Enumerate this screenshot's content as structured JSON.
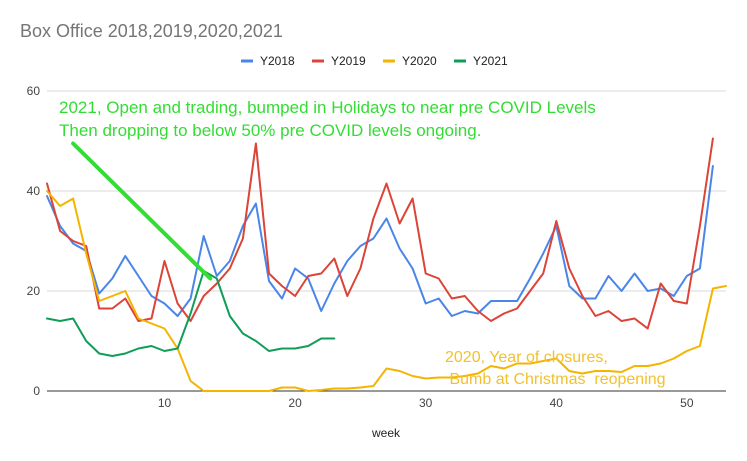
{
  "chart_data": {
    "type": "line",
    "title": "Box Office 2018,2019,2020,2021",
    "xlabel": "week",
    "ylabel": "",
    "xlim": [
      1,
      53
    ],
    "ylim": [
      0,
      60
    ],
    "x_ticks": [
      10,
      20,
      30,
      40,
      50
    ],
    "y_ticks": [
      0,
      20,
      40,
      60
    ],
    "grid": "horizontal",
    "legend_position": "top",
    "series": [
      {
        "name": "Y2018",
        "color": "#4a86e8",
        "x": [
          1,
          2,
          3,
          4,
          5,
          6,
          7,
          8,
          9,
          10,
          11,
          12,
          13,
          14,
          15,
          16,
          17,
          18,
          19,
          20,
          21,
          22,
          23,
          24,
          25,
          26,
          27,
          28,
          29,
          30,
          31,
          32,
          33,
          34,
          35,
          36,
          37,
          38,
          39,
          40,
          41,
          42,
          43,
          44,
          45,
          46,
          47,
          48,
          49,
          50,
          51,
          52
        ],
        "values": [
          39.0,
          33.0,
          29.5,
          28.0,
          19.5,
          22.5,
          27.0,
          23.0,
          19.0,
          17.5,
          15.0,
          18.5,
          31.0,
          23.0,
          26.0,
          33.0,
          37.5,
          22.0,
          18.5,
          24.5,
          22.5,
          16.0,
          21.5,
          26.0,
          29.0,
          30.5,
          34.5,
          28.5,
          24.5,
          17.5,
          18.5,
          15.0,
          16.0,
          15.5,
          18.0,
          18.0,
          18.0,
          22.5,
          27.5,
          33.0,
          21.0,
          18.5,
          18.5,
          23.0,
          20.0,
          23.5,
          20.0,
          20.5,
          19.0,
          23.0,
          24.5,
          45.0
        ]
      },
      {
        "name": "Y2019",
        "color": "#db4437",
        "x": [
          1,
          2,
          3,
          4,
          5,
          6,
          7,
          8,
          9,
          10,
          11,
          12,
          13,
          14,
          15,
          16,
          17,
          18,
          19,
          20,
          21,
          22,
          23,
          24,
          25,
          26,
          27,
          28,
          29,
          30,
          31,
          32,
          33,
          34,
          35,
          36,
          37,
          38,
          39,
          40,
          41,
          42,
          43,
          44,
          45,
          46,
          47,
          48,
          49,
          50,
          51,
          52
        ],
        "values": [
          41.5,
          32.0,
          30.0,
          29.0,
          16.5,
          16.5,
          18.5,
          14.0,
          14.5,
          26.0,
          17.5,
          14.0,
          19.0,
          21.5,
          24.5,
          30.5,
          49.5,
          23.5,
          21.0,
          19.0,
          23.0,
          23.5,
          26.5,
          19.0,
          24.5,
          34.5,
          41.5,
          33.5,
          38.5,
          23.5,
          22.5,
          18.5,
          19.0,
          16.0,
          14.0,
          15.5,
          16.5,
          20.0,
          23.5,
          34.0,
          24.5,
          19.0,
          15.0,
          16.0,
          14.0,
          14.5,
          12.5,
          21.5,
          18.0,
          17.5,
          33.0,
          50.5
        ]
      },
      {
        "name": "Y2020",
        "color": "#f4b400",
        "x": [
          1,
          2,
          3,
          4,
          5,
          6,
          7,
          8,
          9,
          10,
          11,
          12,
          13,
          14,
          15,
          16,
          17,
          18,
          19,
          20,
          21,
          22,
          23,
          24,
          25,
          26,
          27,
          28,
          29,
          30,
          31,
          32,
          33,
          34,
          35,
          36,
          37,
          38,
          39,
          40,
          41,
          42,
          43,
          44,
          45,
          46,
          47,
          48,
          49,
          50,
          51,
          52,
          53
        ],
        "values": [
          40.0,
          37.0,
          38.5,
          27.5,
          18.0,
          19.0,
          20.0,
          14.5,
          13.5,
          12.5,
          8.5,
          2.0,
          0,
          0,
          0,
          0,
          0,
          0,
          0.7,
          0.7,
          0,
          0.2,
          0.5,
          0.5,
          0.7,
          1.0,
          4.5,
          4.0,
          3.0,
          2.5,
          2.7,
          2.7,
          3.0,
          3.5,
          5.0,
          4.5,
          5.5,
          5.5,
          6.0,
          6.5,
          4.0,
          3.5,
          4.0,
          4.0,
          3.8,
          5.0,
          5.0,
          5.5,
          6.5,
          8.0,
          9.0,
          20.5,
          21.0
        ]
      },
      {
        "name": "Y2021",
        "color": "#0f9d58",
        "x": [
          1,
          2,
          3,
          4,
          5,
          6,
          7,
          8,
          9,
          10,
          11,
          12,
          13,
          14,
          15,
          16,
          17,
          18,
          19,
          20,
          21,
          22,
          23
        ],
        "values": [
          14.5,
          14.0,
          14.5,
          10.0,
          7.5,
          7.0,
          7.5,
          8.5,
          9.0,
          8.0,
          8.5,
          15.5,
          24.0,
          22.5,
          15.0,
          11.5,
          10.0,
          8.0,
          8.5,
          8.5,
          9.0,
          10.5,
          10.5
        ]
      }
    ],
    "annotations": [
      {
        "id": "green",
        "lines": [
          "2021, Open and trading, bumped in Holidays to near pre COVID Levels",
          "Then dropping to below 50% pre COVID levels ongoing."
        ],
        "color": "#33dd33"
      },
      {
        "id": "yellow",
        "lines": [
          "2020, Year of closures,",
          " Bumb at Christmas  reopening"
        ],
        "color": "#f2c12e"
      }
    ],
    "arrow": {
      "from": [
        3,
        49.5
      ],
      "to": [
        13.5,
        22.5
      ],
      "color": "#33dd33"
    }
  }
}
